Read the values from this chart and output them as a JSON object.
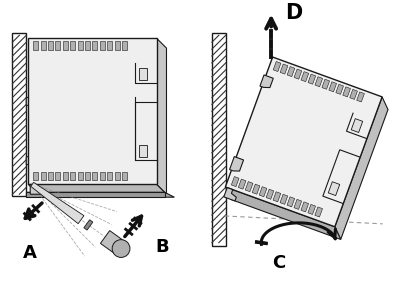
{
  "bg_color": "#ffffff",
  "fig_width": 4.08,
  "fig_height": 2.91,
  "dpi": 100,
  "label_A": "A",
  "label_B": "B",
  "label_C": "C",
  "label_D": "D",
  "label_fontsize": 13,
  "label_fontweight": "bold",
  "ec": "#1a1a1a",
  "fc": "#f5f5f5",
  "fc_shadow": "#d0d0d0",
  "fc_rib": "#c0c0c0",
  "ac": "#111111",
  "wall_fc": "#aaaaaa",
  "wall_hatch": "#555555"
}
